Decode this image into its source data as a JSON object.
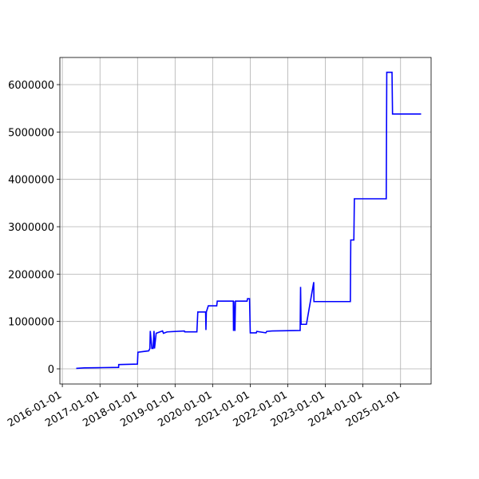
{
  "chart_data": {
    "type": "line",
    "x": [
      "2016-05-15",
      "2016-08-01",
      "2017-01-01",
      "2017-07-01",
      "2017-07-02",
      "2017-12-31",
      "2018-01-05",
      "2018-04-20",
      "2018-05-01",
      "2018-05-05",
      "2018-05-20",
      "2018-06-01",
      "2018-06-10",
      "2018-06-15",
      "2018-07-01",
      "2018-09-01",
      "2018-09-10",
      "2018-10-15",
      "2019-04-01",
      "2019-04-05",
      "2019-08-01",
      "2019-08-10",
      "2019-10-25",
      "2019-10-28",
      "2019-11-01",
      "2019-11-20",
      "2020-02-10",
      "2020-02-15",
      "2020-07-20",
      "2020-07-22",
      "2020-07-25",
      "2020-08-05",
      "2020-08-10",
      "2020-12-01",
      "2020-12-05",
      "2020-12-25",
      "2021-01-01",
      "2021-03-01",
      "2021-03-05",
      "2021-06-01",
      "2021-06-10",
      "2021-08-01",
      "2022-05-01",
      "2022-05-05",
      "2022-05-10",
      "2022-07-01",
      "2022-09-10",
      "2022-09-12",
      "2023-09-01",
      "2023-09-05",
      "2023-10-05",
      "2023-10-10",
      "2024-08-15",
      "2024-08-20",
      "2024-10-10",
      "2024-10-15",
      "2025-07-20"
    ],
    "series": [
      {
        "color": "#0000ff",
        "values": [
          10000,
          20000,
          25000,
          30000,
          90000,
          100000,
          350000,
          380000,
          430000,
          800000,
          430000,
          430000,
          800000,
          430000,
          750000,
          800000,
          750000,
          780000,
          800000,
          780000,
          780000,
          1200000,
          1200000,
          820000,
          1200000,
          1330000,
          1330000,
          1430000,
          1430000,
          800000,
          1430000,
          800000,
          1430000,
          1430000,
          1480000,
          1480000,
          760000,
          760000,
          790000,
          760000,
          790000,
          800000,
          810000,
          1730000,
          940000,
          940000,
          1830000,
          1420000,
          1420000,
          2720000,
          2720000,
          3590000,
          3590000,
          6260000,
          6260000,
          5380000,
          5380000
        ]
      }
    ],
    "xlim": [
      "2015-12-08",
      "2025-10-25"
    ],
    "xticks": [
      "2016-01-01",
      "2017-01-01",
      "2018-01-01",
      "2019-01-01",
      "2020-01-01",
      "2021-01-01",
      "2022-01-01",
      "2023-01-01",
      "2024-01-01",
      "2025-01-01"
    ],
    "ylim": [
      -320000,
      6573000
    ],
    "yticks": [
      0,
      1000000,
      2000000,
      3000000,
      4000000,
      5000000,
      6000000
    ],
    "grid": true
  }
}
